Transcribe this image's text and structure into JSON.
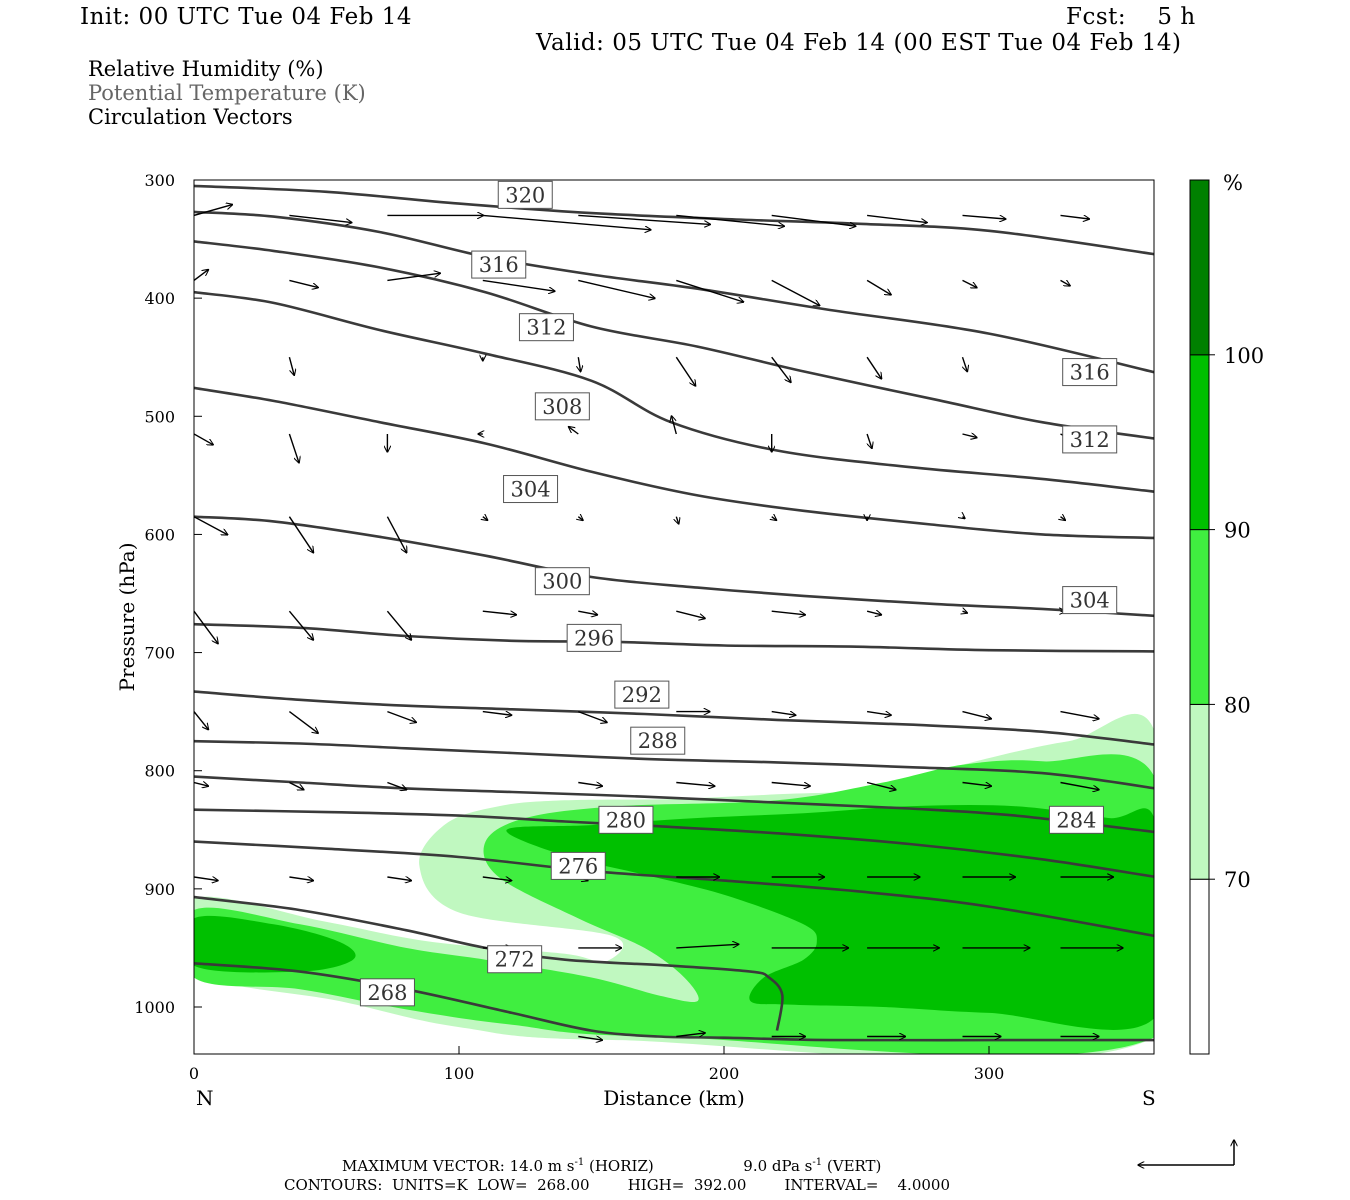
{
  "header": {
    "init": "Init: 00 UTC Tue 04 Feb 14",
    "fcst": "Fcst:    5 h",
    "valid": "Valid: 05 UTC Tue 04 Feb 14 (00 EST Tue 04 Feb 14)"
  },
  "legend": {
    "rh": "Relative Humidity (%)",
    "theta": "Potential Temperature (K)",
    "vectors": "Circulation Vectors"
  },
  "axes": {
    "xlabel": "Distance (km)",
    "ylabel": "Pressure (hPa)",
    "left_end": "N",
    "right_end": "S",
    "xticks": [
      0,
      100,
      200,
      300
    ],
    "yticks": [
      300,
      400,
      500,
      600,
      700,
      800,
      900,
      1000
    ],
    "xlim": [
      0,
      363
    ],
    "ylim": [
      300,
      1037
    ]
  },
  "colorbar": {
    "unit": "%",
    "levels": [
      70,
      80,
      90,
      100
    ],
    "colors": [
      "#ffffff",
      "#c0f8c0",
      "#40ee40",
      "#00c000",
      "#008000"
    ]
  },
  "footer": {
    "max_vector": "MAXIMUM VECTOR:  14.0 m s",
    "horiz": "(HORIZ)",
    "vert_val": "9.0 dPa s",
    "vert": "(VERT)",
    "exp": "-1",
    "contours": "CONTOURS:  UNITS=K  LOW=  268.00        HIGH=  392.00        INTERVAL=    4.0000"
  },
  "chart_data": {
    "type": "cross-section contour",
    "title": "",
    "xlabel": "Distance (km)",
    "ylabel": "Pressure (hPa)",
    "contour_units": "K",
    "contour_interval": 4,
    "theta_contours": [
      {
        "value": 268,
        "points": [
          [
            0,
            963
          ],
          [
            40,
            970
          ],
          [
            80,
            985
          ],
          [
            120,
            1005
          ],
          [
            150,
            1020
          ],
          [
            175,
            1025
          ],
          [
            200,
            1026
          ],
          [
            240,
            1028
          ],
          [
            300,
            1028
          ],
          [
            363,
            1028
          ]
        ]
      },
      {
        "value": 272,
        "points": [
          [
            0,
            907
          ],
          [
            40,
            918
          ],
          [
            80,
            935
          ],
          [
            110,
            950
          ],
          [
            140,
            960
          ],
          [
            180,
            965
          ],
          [
            210,
            970
          ],
          [
            217,
            975
          ],
          [
            222,
            990
          ],
          [
            220,
            1020
          ]
        ]
      },
      {
        "value": 276,
        "points": [
          [
            0,
            860
          ],
          [
            50,
            866
          ],
          [
            100,
            873
          ],
          [
            150,
            885
          ],
          [
            200,
            893
          ],
          [
            250,
            902
          ],
          [
            300,
            915
          ],
          [
            363,
            940
          ]
        ]
      },
      {
        "value": 280,
        "points": [
          [
            0,
            833
          ],
          [
            50,
            835
          ],
          [
            100,
            838
          ],
          [
            140,
            843
          ],
          [
            175,
            847
          ],
          [
            220,
            853
          ],
          [
            270,
            862
          ],
          [
            320,
            875
          ],
          [
            363,
            890
          ]
        ]
      },
      {
        "value": 284,
        "points": [
          [
            0,
            805
          ],
          [
            40,
            810
          ],
          [
            80,
            815
          ],
          [
            120,
            818
          ],
          [
            170,
            822
          ],
          [
            220,
            827
          ],
          [
            270,
            832
          ],
          [
            310,
            838
          ],
          [
            363,
            852
          ]
        ]
      },
      {
        "value": 288,
        "points": [
          [
            0,
            775
          ],
          [
            40,
            777
          ],
          [
            80,
            781
          ],
          [
            120,
            785
          ],
          [
            170,
            790
          ],
          [
            220,
            793
          ],
          [
            270,
            797
          ],
          [
            320,
            802
          ],
          [
            363,
            815
          ]
        ]
      },
      {
        "value": 292,
        "points": [
          [
            0,
            733
          ],
          [
            40,
            740
          ],
          [
            80,
            745
          ],
          [
            120,
            748
          ],
          [
            170,
            752
          ],
          [
            220,
            757
          ],
          [
            270,
            761
          ],
          [
            320,
            767
          ],
          [
            363,
            778
          ]
        ]
      },
      {
        "value": 296,
        "points": [
          [
            0,
            676
          ],
          [
            40,
            679
          ],
          [
            80,
            686
          ],
          [
            120,
            690
          ],
          [
            160,
            691
          ],
          [
            200,
            694
          ],
          [
            250,
            695
          ],
          [
            300,
            698
          ],
          [
            363,
            699
          ]
        ]
      },
      {
        "value": 300,
        "points": [
          [
            0,
            585
          ],
          [
            30,
            589
          ],
          [
            70,
            602
          ],
          [
            110,
            618
          ],
          [
            150,
            636
          ],
          [
            190,
            645
          ],
          [
            230,
            652
          ],
          [
            280,
            659
          ],
          [
            320,
            663
          ],
          [
            363,
            669
          ]
        ]
      },
      {
        "value": 304,
        "points": [
          [
            0,
            476
          ],
          [
            30,
            487
          ],
          [
            70,
            505
          ],
          [
            110,
            523
          ],
          [
            150,
            547
          ],
          [
            190,
            567
          ],
          [
            230,
            580
          ],
          [
            280,
            592
          ],
          [
            320,
            600
          ],
          [
            363,
            603
          ]
        ]
      },
      {
        "value": 308,
        "points": [
          [
            0,
            395
          ],
          [
            30,
            404
          ],
          [
            70,
            427
          ],
          [
            110,
            447
          ],
          [
            150,
            470
          ],
          [
            180,
            505
          ],
          [
            220,
            529
          ],
          [
            270,
            543
          ],
          [
            320,
            553
          ],
          [
            363,
            564
          ]
        ]
      },
      {
        "value": 312,
        "points": [
          [
            0,
            352
          ],
          [
            30,
            360
          ],
          [
            70,
            374
          ],
          [
            110,
            395
          ],
          [
            150,
            424
          ],
          [
            190,
            441
          ],
          [
            230,
            462
          ],
          [
            280,
            486
          ],
          [
            320,
            505
          ],
          [
            363,
            519
          ]
        ]
      },
      {
        "value": 316,
        "points": [
          [
            0,
            327
          ],
          [
            30,
            331
          ],
          [
            70,
            344
          ],
          [
            110,
            365
          ],
          [
            150,
            380
          ],
          [
            190,
            392
          ],
          [
            240,
            410
          ],
          [
            300,
            430
          ],
          [
            363,
            463
          ]
        ]
      },
      {
        "value": 320,
        "points": [
          [
            0,
            305
          ],
          [
            50,
            310
          ],
          [
            100,
            320
          ],
          [
            150,
            328
          ],
          [
            200,
            333
          ],
          [
            250,
            337
          ],
          [
            300,
            343
          ],
          [
            363,
            363
          ]
        ]
      }
    ],
    "rh_shading": [
      {
        "level": 70,
        "points": [
          [
            0,
            908
          ],
          [
            50,
            928
          ],
          [
            90,
            945
          ],
          [
            140,
            955
          ],
          [
            155,
            962
          ],
          [
            158,
            940
          ],
          [
            100,
            920
          ],
          [
            85,
            880
          ],
          [
            95,
            845
          ],
          [
            115,
            830
          ],
          [
            140,
            825
          ],
          [
            180,
            824
          ],
          [
            220,
            820
          ],
          [
            260,
            815
          ],
          [
            290,
            795
          ],
          [
            330,
            775
          ],
          [
            363,
            770
          ],
          [
            363,
            1025
          ],
          [
            160,
            1028
          ],
          [
            100,
            1017
          ],
          [
            55,
            995
          ],
          [
            0,
            970
          ]
        ]
      },
      {
        "level": 80,
        "points": [
          [
            0,
            918
          ],
          [
            40,
            930
          ],
          [
            80,
            950
          ],
          [
            110,
            960
          ],
          [
            150,
            975
          ],
          [
            175,
            990
          ],
          [
            190,
            995
          ],
          [
            185,
            975
          ],
          [
            170,
            950
          ],
          [
            145,
            925
          ],
          [
            115,
            890
          ],
          [
            110,
            860
          ],
          [
            125,
            840
          ],
          [
            160,
            830
          ],
          [
            220,
            825
          ],
          [
            260,
            810
          ],
          [
            290,
            795
          ],
          [
            320,
            792
          ],
          [
            363,
            808
          ],
          [
            363,
            1025
          ],
          [
            175,
            1025
          ],
          [
            120,
            1015
          ],
          [
            80,
            1002
          ],
          [
            40,
            985
          ],
          [
            0,
            975
          ]
        ]
      },
      {
        "level": 90,
        "points": [
          [
            0,
            925
          ],
          [
            30,
            930
          ],
          [
            55,
            945
          ],
          [
            60,
            960
          ],
          [
            40,
            970
          ],
          [
            0,
            965
          ]
        ]
      },
      {
        "level": 90,
        "points": [
          [
            118,
            850
          ],
          [
            150,
            846
          ],
          [
            190,
            840
          ],
          [
            230,
            836
          ],
          [
            270,
            830
          ],
          [
            310,
            830
          ],
          [
            345,
            840
          ],
          [
            363,
            845
          ],
          [
            363,
            1008
          ],
          [
            300,
            1005
          ],
          [
            260,
            1000
          ],
          [
            225,
            998
          ],
          [
            210,
            995
          ],
          [
            215,
            975
          ],
          [
            230,
            960
          ],
          [
            235,
            945
          ],
          [
            230,
            930
          ],
          [
            200,
            905
          ],
          [
            170,
            888
          ],
          [
            140,
            872
          ]
        ]
      }
    ],
    "rh_levels": [
      70,
      80,
      90,
      100
    ],
    "vectors": {
      "x_km": [
        0,
        36,
        73,
        109,
        145,
        182,
        218,
        254,
        290,
        327,
        363
      ],
      "rows": [
        {
          "p": 330,
          "u": [
            16,
            26,
            40,
            70,
            55,
            45,
            35,
            25,
            18,
            12,
            8
          ],
          "w": [
            -6,
            4,
            0,
            8,
            5,
            6,
            6,
            4,
            2,
            2,
            0
          ]
        },
        {
          "p": 385,
          "u": [
            6,
            12,
            22,
            30,
            32,
            28,
            20,
            10,
            6,
            4,
            0
          ],
          "w": [
            -6,
            4,
            -4,
            6,
            10,
            12,
            14,
            8,
            4,
            3,
            0
          ]
        },
        {
          "p": 450,
          "u": [
            0,
            2,
            0,
            0,
            1,
            8,
            8,
            6,
            2,
            0,
            2
          ],
          "w": [
            0,
            10,
            0,
            2,
            8,
            16,
            14,
            12,
            8,
            0,
            -8
          ]
        },
        {
          "p": 515,
          "u": [
            8,
            4,
            0,
            -2,
            -4,
            -2,
            0,
            2,
            6,
            6,
            0
          ],
          "w": [
            6,
            16,
            10,
            0,
            -4,
            -10,
            10,
            8,
            2,
            4,
            0
          ]
        },
        {
          "p": 585,
          "u": [
            14,
            10,
            8,
            2,
            2,
            1,
            2,
            0,
            1,
            2,
            0
          ],
          "w": [
            10,
            20,
            20,
            2,
            2,
            4,
            2,
            2,
            1,
            2,
            0
          ]
        },
        {
          "p": 665,
          "u": [
            10,
            10,
            10,
            14,
            8,
            12,
            14,
            6,
            2,
            2,
            0
          ],
          "w": [
            18,
            16,
            16,
            2,
            2,
            4,
            2,
            2,
            1,
            0,
            0
          ]
        },
        {
          "p": 750,
          "u": [
            6,
            12,
            12,
            12,
            12,
            14,
            10,
            10,
            12,
            16,
            0
          ],
          "w": [
            10,
            12,
            6,
            2,
            6,
            0,
            2,
            2,
            4,
            4,
            0
          ]
        },
        {
          "p": 810,
          "u": [
            6,
            6,
            8,
            0,
            10,
            16,
            16,
            12,
            12,
            16,
            0
          ],
          "w": [
            2,
            4,
            4,
            0,
            2,
            2,
            2,
            4,
            2,
            4,
            0
          ]
        },
        {
          "p": 890,
          "u": [
            10,
            10,
            10,
            12,
            4,
            18,
            22,
            22,
            22,
            22,
            0
          ],
          "w": [
            2,
            2,
            2,
            2,
            2,
            0,
            0,
            0,
            0,
            0,
            0
          ]
        },
        {
          "p": 950,
          "u": [
            0,
            0,
            0,
            12,
            18,
            26,
            32,
            30,
            28,
            26,
            0
          ],
          "w": [
            0,
            0,
            0,
            0,
            0,
            -2,
            0,
            0,
            0,
            0,
            0
          ]
        },
        {
          "p": 1025,
          "u": [
            0,
            0,
            0,
            0,
            10,
            12,
            14,
            16,
            16,
            16,
            0
          ],
          "w": [
            0,
            0,
            0,
            0,
            2,
            -2,
            0,
            0,
            0,
            0,
            0
          ]
        }
      ]
    }
  }
}
